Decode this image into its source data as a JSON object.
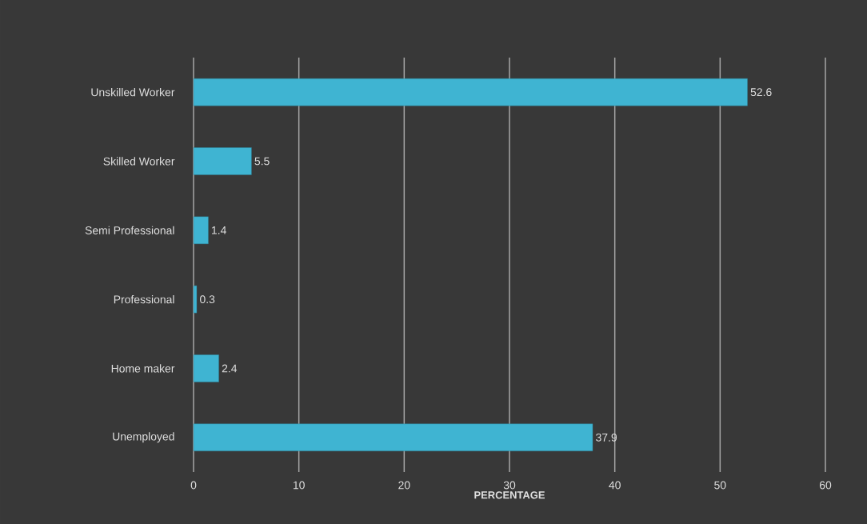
{
  "chart_data": {
    "type": "bar",
    "orientation": "horizontal",
    "xlabel": "PERCENTAGE",
    "categories": [
      "Unskilled Worker",
      "Skilled Worker",
      "Semi Professional",
      "Professional",
      "Home maker",
      "Unemployed"
    ],
    "values": [
      52.6,
      5.5,
      1.4,
      0.3,
      2.4,
      37.9
    ],
    "color": "#3fb4d2",
    "xlim": [
      0,
      60
    ],
    "xticks": [
      0,
      10,
      20,
      30,
      40,
      50,
      60
    ],
    "grid": "x",
    "data_labels": true
  }
}
